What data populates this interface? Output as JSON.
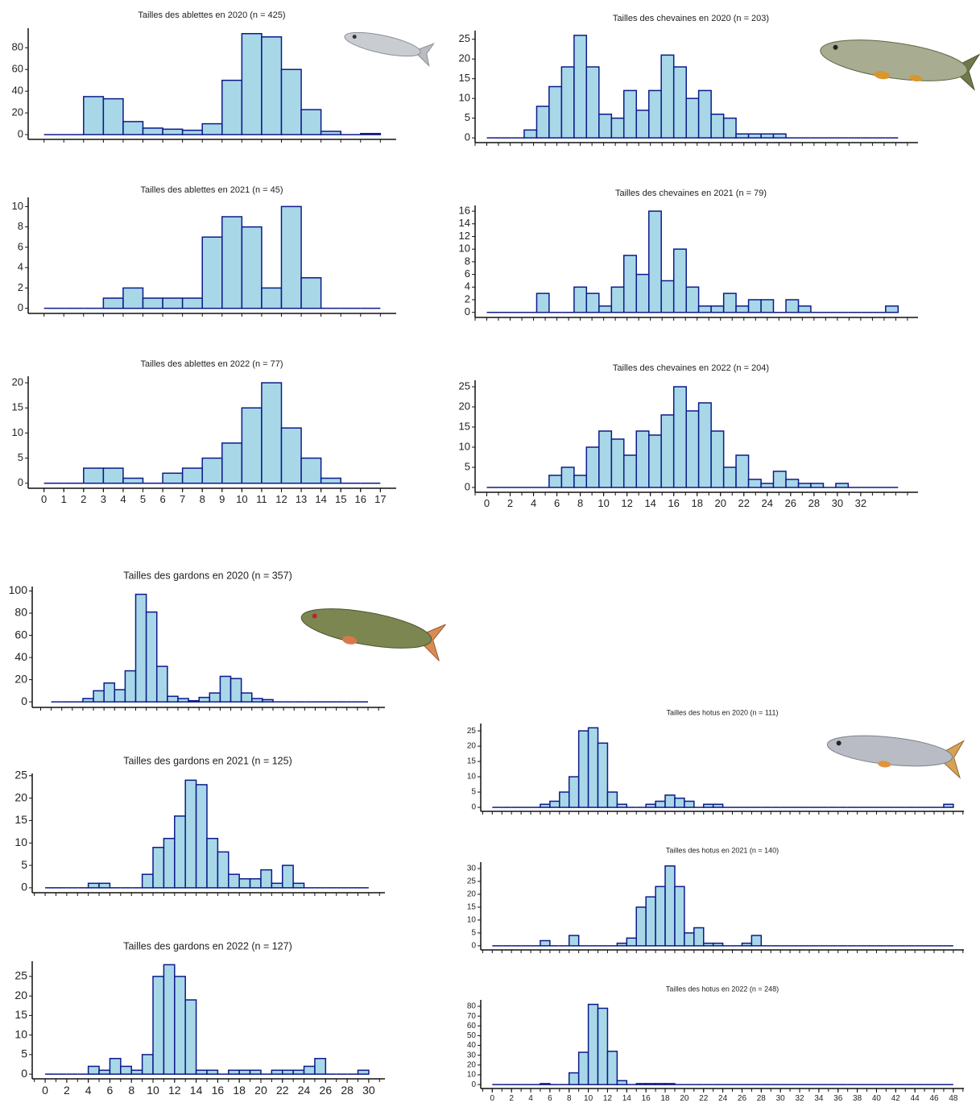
{
  "chart_data": [
    {
      "type": "histogram",
      "title": "Tailles des ablettes en 2020 (n = 425)",
      "color": "#a8d8e8",
      "edge_color": "#0d1a8a",
      "bins": [
        0,
        1,
        2,
        3,
        4,
        5,
        6,
        7,
        8,
        9,
        10,
        11,
        12,
        13,
        14,
        15,
        16,
        17
      ],
      "values": [
        0,
        0,
        35,
        33,
        12,
        6,
        5,
        4,
        10,
        50,
        93,
        90,
        60,
        23,
        3,
        0,
        1
      ],
      "xlim": [
        -0.8,
        17.8
      ],
      "ylim": [
        -4.4,
        98
      ],
      "yticks": [
        0,
        20,
        40,
        60,
        80
      ]
    },
    {
      "type": "histogram",
      "title": "Tailles des ablettes en 2021 (n = 45)",
      "color": "#a8d8e8",
      "edge_color": "#0d1a8a",
      "bins": [
        0,
        1,
        2,
        3,
        4,
        5,
        6,
        7,
        8,
        9,
        10,
        11,
        12,
        13,
        14,
        15,
        16,
        17
      ],
      "values": [
        0,
        0,
        0,
        1,
        2,
        1,
        1,
        1,
        7,
        9,
        8,
        2,
        10,
        3,
        0,
        0,
        0
      ],
      "xlim": [
        -0.8,
        17.8
      ],
      "ylim": [
        -0.5,
        10.9
      ],
      "yticks": [
        0,
        2,
        4,
        6,
        8,
        10
      ]
    },
    {
      "type": "histogram",
      "title": "Tailles des ablettes en 2022 (n = 77)",
      "color": "#a8d8e8",
      "edge_color": "#0d1a8a",
      "bins": [
        0,
        1,
        2,
        3,
        4,
        5,
        6,
        7,
        8,
        9,
        10,
        11,
        12,
        13,
        14,
        15,
        16,
        17
      ],
      "values": [
        0,
        0,
        3,
        3,
        1,
        0,
        2,
        3,
        5,
        8,
        15,
        20,
        11,
        5,
        1,
        0,
        0
      ],
      "xlim": [
        -0.8,
        17.8
      ],
      "ylim": [
        -1,
        21.3
      ],
      "yticks": [
        0,
        5,
        10,
        15,
        20
      ],
      "xticks": [
        0,
        1,
        2,
        3,
        4,
        5,
        6,
        7,
        8,
        9,
        10,
        11,
        12,
        13,
        14,
        15,
        16,
        17
      ]
    },
    {
      "type": "histogram",
      "title": "Tailles des chevaines en 2020 (n = 203)",
      "color": "#a8d8e8",
      "edge_color": "#0d1a8a",
      "bins": [
        0,
        1.07,
        2.13,
        3.2,
        4.27,
        5.33,
        6.4,
        7.47,
        8.53,
        9.6,
        10.67,
        11.73,
        12.8,
        13.87,
        14.93,
        16,
        17.07,
        18.13,
        19.2,
        20.27,
        21.33,
        22.4,
        23.47,
        24.53,
        25.6,
        26.67,
        27.73,
        28.8,
        29.87,
        30.93,
        32,
        33.07,
        34.13,
        35.2
      ],
      "values": [
        0,
        0,
        0,
        2,
        8,
        13,
        18,
        26,
        18,
        6,
        5,
        12,
        7,
        12,
        21,
        18,
        10,
        12,
        6,
        5,
        1,
        1,
        1,
        1,
        0,
        0,
        0,
        0,
        0,
        0,
        0,
        0,
        0
      ],
      "xlim": [
        -1,
        36.9
      ],
      "ylim": [
        -1.2,
        27.2
      ],
      "yticks": [
        0,
        5,
        10,
        15,
        20,
        25
      ]
    },
    {
      "type": "histogram",
      "title": "Tailles des chevaines en 2021 (n = 79)",
      "color": "#a8d8e8",
      "edge_color": "#0d1a8a",
      "bins": [
        0,
        1.07,
        2.13,
        3.2,
        4.27,
        5.33,
        6.4,
        7.47,
        8.53,
        9.6,
        10.67,
        11.73,
        12.8,
        13.87,
        14.93,
        16,
        17.07,
        18.13,
        19.2,
        20.27,
        21.33,
        22.4,
        23.47,
        24.53,
        25.6,
        26.67,
        27.73,
        28.8,
        29.87,
        30.93,
        32,
        33.07,
        34.13,
        35.2
      ],
      "values": [
        0,
        0,
        0,
        0,
        3,
        0,
        0,
        4,
        3,
        1,
        4,
        9,
        6,
        16,
        5,
        10,
        4,
        1,
        1,
        3,
        1,
        2,
        2,
        0,
        2,
        1,
        0,
        0,
        0,
        0,
        0,
        0,
        1
      ],
      "xlim": [
        -1,
        36.9
      ],
      "ylim": [
        -0.8,
        16.9
      ],
      "yticks": [
        0,
        2,
        4,
        6,
        8,
        10,
        12,
        14,
        16
      ]
    },
    {
      "type": "histogram",
      "title": "Tailles des chevaines en 2022 (n = 204)",
      "color": "#a8d8e8",
      "edge_color": "#0d1a8a",
      "bins": [
        0,
        1.07,
        2.13,
        3.2,
        4.27,
        5.33,
        6.4,
        7.47,
        8.53,
        9.6,
        10.67,
        11.73,
        12.8,
        13.87,
        14.93,
        16,
        17.07,
        18.13,
        19.2,
        20.27,
        21.33,
        22.4,
        23.47,
        24.53,
        25.6,
        26.67,
        27.73,
        28.8,
        29.87,
        30.93,
        32,
        33.07,
        34.13,
        35.2
      ],
      "values": [
        0,
        0,
        0,
        0,
        0,
        3,
        5,
        3,
        10,
        14,
        12,
        8,
        14,
        13,
        18,
        25,
        19,
        21,
        14,
        5,
        8,
        2,
        1,
        4,
        2,
        1,
        1,
        0,
        1,
        0,
        0,
        0,
        0
      ],
      "xlim": [
        -1,
        36.9
      ],
      "ylim": [
        -1.2,
        26.6
      ],
      "yticks": [
        0,
        5,
        10,
        15,
        20,
        25
      ],
      "xticks": [
        0,
        2,
        4,
        6,
        8,
        10,
        12,
        14,
        16,
        18,
        20,
        22,
        24,
        26,
        28,
        30,
        32
      ]
    },
    {
      "type": "histogram",
      "title": "Tailles des gardons en 2020 (n = 357)",
      "color": "#a8d8e8",
      "edge_color": "#0d1a8a",
      "bins": [
        0,
        1,
        2,
        3,
        4,
        5,
        6,
        7,
        8,
        9,
        10,
        11,
        12,
        13,
        14,
        15,
        16,
        17,
        18,
        19,
        20,
        21,
        22,
        23,
        24,
        25,
        26,
        27,
        28,
        29,
        30
      ],
      "values": [
        0,
        0,
        0,
        3,
        10,
        17,
        11,
        28,
        97,
        81,
        32,
        5,
        3,
        1,
        4,
        8,
        23,
        21,
        8,
        3,
        2,
        0,
        0,
        0,
        0,
        0,
        0,
        0,
        0,
        0
      ],
      "xlim": [
        -1.8,
        31.6
      ],
      "ylim": [
        -5,
        104
      ],
      "yticks": [
        0,
        20,
        40,
        60,
        80,
        100
      ]
    },
    {
      "type": "histogram",
      "title": "Tailles des gardons en 2021 (n = 125)",
      "color": "#a8d8e8",
      "edge_color": "#0d1a8a",
      "bins": [
        0,
        1,
        2,
        3,
        4,
        5,
        6,
        7,
        8,
        9,
        10,
        11,
        12,
        13,
        14,
        15,
        16,
        17,
        18,
        19,
        20,
        21,
        22,
        23,
        24,
        25,
        26,
        27,
        28,
        29,
        30
      ],
      "values": [
        0,
        0,
        0,
        0,
        1,
        1,
        0,
        0,
        0,
        3,
        9,
        11,
        16,
        24,
        23,
        11,
        8,
        3,
        2,
        2,
        4,
        1,
        5,
        1,
        0,
        0,
        0,
        0,
        0,
        0
      ],
      "xlim": [
        -1.2,
        31.5
      ],
      "ylim": [
        -1.1,
        25.5
      ],
      "yticks": [
        0,
        5,
        10,
        15,
        20,
        25
      ]
    },
    {
      "type": "histogram",
      "title": "Tailles des gardons en 2022 (n = 127)",
      "color": "#a8d8e8",
      "edge_color": "#0d1a8a",
      "bins": [
        0,
        1,
        2,
        3,
        4,
        5,
        6,
        7,
        8,
        9,
        10,
        11,
        12,
        13,
        14,
        15,
        16,
        17,
        18,
        19,
        20,
        21,
        22,
        23,
        24,
        25,
        26,
        27,
        28,
        29,
        30
      ],
      "values": [
        0,
        0,
        0,
        0,
        2,
        1,
        4,
        2,
        1,
        5,
        25,
        28,
        25,
        19,
        1,
        1,
        0,
        1,
        1,
        1,
        0,
        1,
        1,
        1,
        2,
        4,
        0,
        0,
        0,
        1
      ],
      "xlim": [
        -1.2,
        31.5
      ],
      "ylim": [
        -1.2,
        28.9
      ],
      "yticks": [
        0,
        5,
        10,
        15,
        20,
        25
      ],
      "xticks": [
        0,
        2,
        4,
        6,
        8,
        10,
        12,
        14,
        16,
        18,
        20,
        22,
        24,
        26,
        28,
        30
      ]
    },
    {
      "type": "histogram",
      "title": "Tailles des hotus en 2020 (n = 111)",
      "color": "#a8d8e8",
      "edge_color": "#0d1a8a",
      "bins": [
        0,
        1,
        2,
        3,
        4,
        5,
        6,
        7,
        8,
        9,
        10,
        11,
        12,
        13,
        14,
        15,
        16,
        17,
        18,
        19,
        20,
        21,
        22,
        23,
        24,
        25,
        26,
        27,
        28,
        29,
        30,
        31,
        32,
        33,
        34,
        35,
        36,
        37,
        38,
        39,
        40,
        41,
        42,
        43,
        44,
        45,
        46,
        47,
        48
      ],
      "values": [
        0,
        0,
        0,
        0,
        0,
        1,
        2,
        5,
        10,
        25,
        26,
        21,
        5,
        1,
        0,
        0,
        1,
        2,
        4,
        3,
        2,
        0,
        1,
        1,
        0,
        0,
        0,
        0,
        0,
        0,
        0,
        0,
        0,
        0,
        0,
        0,
        0,
        0,
        0,
        0,
        0,
        0,
        0,
        0,
        0,
        0,
        0,
        1
      ],
      "xlim": [
        -1.2,
        49.1
      ],
      "ylim": [
        -1.3,
        27.4
      ],
      "yticks": [
        0,
        5,
        10,
        15,
        20,
        25
      ]
    },
    {
      "type": "histogram",
      "title": "Tailles des hotus en 2021 (n = 140)",
      "color": "#a8d8e8",
      "edge_color": "#0d1a8a",
      "bins": [
        0,
        1,
        2,
        3,
        4,
        5,
        6,
        7,
        8,
        9,
        10,
        11,
        12,
        13,
        14,
        15,
        16,
        17,
        18,
        19,
        20,
        21,
        22,
        23,
        24,
        25,
        26,
        27,
        28,
        29,
        30,
        31,
        32,
        33,
        34,
        35,
        36,
        37,
        38,
        39,
        40,
        41,
        42,
        43,
        44,
        45,
        46,
        47,
        48
      ],
      "values": [
        0,
        0,
        0,
        0,
        0,
        2,
        0,
        0,
        4,
        0,
        0,
        0,
        0,
        1,
        3,
        15,
        19,
        23,
        31,
        23,
        5,
        7,
        1,
        1,
        0,
        0,
        1,
        4,
        0,
        0,
        0,
        0,
        0,
        0,
        0,
        0,
        0,
        0,
        0,
        0,
        0,
        0,
        0,
        0,
        0,
        0,
        0,
        0
      ],
      "xlim": [
        -1.2,
        49.1
      ],
      "ylim": [
        -1.6,
        32.5
      ],
      "yticks": [
        0,
        5,
        10,
        15,
        20,
        25,
        30
      ]
    },
    {
      "type": "histogram",
      "title": "Tailles des hotus en 2022 (n = 248)",
      "color": "#a8d8e8",
      "edge_color": "#0d1a8a",
      "bins": [
        0,
        1,
        2,
        3,
        4,
        5,
        6,
        7,
        8,
        9,
        10,
        11,
        12,
        13,
        14,
        15,
        16,
        17,
        18,
        19,
        20,
        21,
        22,
        23,
        24,
        25,
        26,
        27,
        28,
        29,
        30,
        31,
        32,
        33,
        34,
        35,
        36,
        37,
        38,
        39,
        40,
        41,
        42,
        43,
        44,
        45,
        46,
        47,
        48
      ],
      "values": [
        0,
        0,
        0,
        0,
        0,
        1,
        0,
        0,
        12,
        33,
        82,
        78,
        34,
        4,
        0,
        1,
        1,
        1,
        1,
        0,
        0,
        0,
        0,
        0,
        0,
        0,
        0,
        0,
        0,
        0,
        0,
        0,
        0,
        0,
        0,
        0,
        0,
        0,
        0,
        0,
        0,
        0,
        0,
        0,
        0,
        0,
        0,
        0
      ],
      "xlim": [
        -1.2,
        49.1
      ],
      "ylim": [
        -4,
        86.6
      ],
      "yticks": [
        0,
        10,
        20,
        30,
        40,
        50,
        60,
        70,
        80
      ],
      "xticks": [
        0,
        2,
        4,
        6,
        8,
        10,
        12,
        14,
        16,
        18,
        20,
        22,
        24,
        26,
        28,
        30,
        32,
        34,
        36,
        38,
        40,
        42,
        44,
        46,
        48
      ]
    }
  ]
}
